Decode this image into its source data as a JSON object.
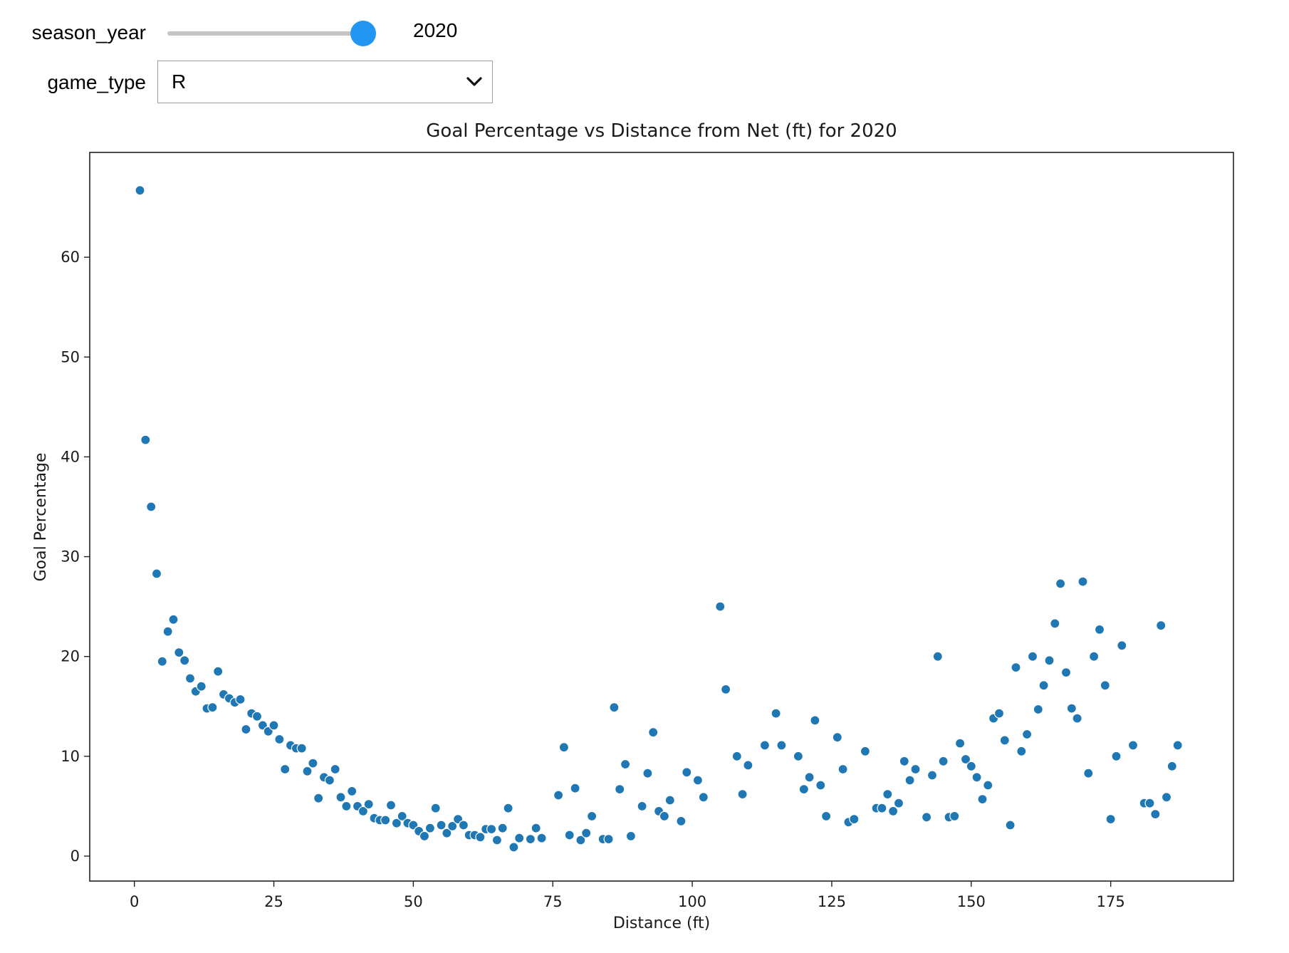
{
  "controls": {
    "season_year": {
      "label": "season_year",
      "value": 2020,
      "min": 2016,
      "max": 2020,
      "readout": "2020",
      "accent": "#2196f3"
    },
    "game_type": {
      "label": "game_type",
      "value": "R"
    }
  },
  "chart_data": {
    "type": "scatter",
    "title": "Goal Percentage vs Distance from Net (ft) for 2020",
    "xlabel": "Distance (ft)",
    "ylabel": "Goal Percentage",
    "xlim": [
      -8,
      197
    ],
    "ylim": [
      -2.5,
      70.5
    ],
    "xticks": [
      0,
      25,
      50,
      75,
      100,
      125,
      150,
      175
    ],
    "yticks": [
      0,
      10,
      20,
      30,
      40,
      50,
      60
    ],
    "grid": false,
    "marker_color": "#1f77b4",
    "series": [
      {
        "x": [
          1,
          2,
          3,
          4,
          5,
          6,
          7,
          8,
          9,
          10,
          11,
          12,
          13,
          14,
          15,
          16,
          17,
          18,
          19,
          20,
          21,
          22,
          23,
          24,
          25,
          26,
          27,
          28,
          29,
          30,
          31,
          32,
          33,
          34,
          35,
          36,
          37,
          38,
          39,
          40,
          41,
          42,
          43,
          44,
          45,
          46,
          47,
          48,
          49,
          50,
          51,
          52,
          53,
          54,
          55,
          56,
          57,
          58,
          59,
          60,
          61,
          62,
          63,
          64,
          65,
          66,
          67,
          68,
          69,
          71,
          72,
          73,
          76,
          77,
          78,
          79,
          80,
          81,
          82,
          84,
          85,
          86,
          87,
          88,
          89,
          91,
          92,
          93,
          94,
          95,
          96,
          98,
          99,
          101,
          102,
          105,
          106,
          108,
          109,
          110,
          113,
          115,
          116,
          119,
          120,
          121,
          122,
          123,
          124,
          126,
          127,
          128,
          129,
          131,
          133,
          134,
          135,
          136,
          137,
          138,
          139,
          140,
          142,
          143,
          144,
          145,
          146,
          147,
          148,
          149,
          150,
          151,
          152,
          153,
          154,
          155,
          156,
          157,
          158,
          159,
          160,
          161,
          162,
          163,
          164,
          165,
          166,
          167,
          168,
          169,
          170,
          171,
          172,
          173,
          174,
          175,
          176,
          177,
          179,
          181,
          182,
          183,
          184,
          185,
          186,
          187
        ],
        "y": [
          66.7,
          41.7,
          35.0,
          28.3,
          19.5,
          22.5,
          23.7,
          20.4,
          19.6,
          17.8,
          16.5,
          17.0,
          14.8,
          14.9,
          18.5,
          16.2,
          15.8,
          15.4,
          15.7,
          12.7,
          14.3,
          14.0,
          13.1,
          12.5,
          13.1,
          11.7,
          8.7,
          11.1,
          10.8,
          10.8,
          8.5,
          9.3,
          5.8,
          7.9,
          7.6,
          8.7,
          5.9,
          5.0,
          6.5,
          5.0,
          4.5,
          5.2,
          3.8,
          3.6,
          3.6,
          5.1,
          3.3,
          4.0,
          3.3,
          3.1,
          2.5,
          2.0,
          2.8,
          4.8,
          3.1,
          2.3,
          3.0,
          3.7,
          3.1,
          2.1,
          2.1,
          1.9,
          2.7,
          2.7,
          1.6,
          2.8,
          4.8,
          0.9,
          1.8,
          1.7,
          2.8,
          1.8,
          6.1,
          10.9,
          2.1,
          6.8,
          1.6,
          2.3,
          4.0,
          1.7,
          1.7,
          14.9,
          6.7,
          9.2,
          2.0,
          5.0,
          8.3,
          12.4,
          4.5,
          4.0,
          5.6,
          3.5,
          8.4,
          7.6,
          5.9,
          25.0,
          16.7,
          10.0,
          6.2,
          9.1,
          11.1,
          14.3,
          11.1,
          10.0,
          6.7,
          7.9,
          13.6,
          7.1,
          4.0,
          11.9,
          8.7,
          3.4,
          3.7,
          10.5,
          4.8,
          4.8,
          6.2,
          4.5,
          5.3,
          9.5,
          7.6,
          8.7,
          3.9,
          8.1,
          20.0,
          9.5,
          3.9,
          4.0,
          11.3,
          9.7,
          9.0,
          7.9,
          5.7,
          7.1,
          13.8,
          14.3,
          11.6,
          3.1,
          18.9,
          10.5,
          12.2,
          20.0,
          14.7,
          17.1,
          19.6,
          23.3,
          27.3,
          18.4,
          14.8,
          13.8,
          27.5,
          8.3,
          20.0,
          22.7,
          17.1,
          3.7,
          10.0,
          21.1,
          11.1,
          5.3,
          5.3,
          4.2,
          23.1,
          5.9,
          9.0,
          11.1
        ]
      }
    ]
  }
}
